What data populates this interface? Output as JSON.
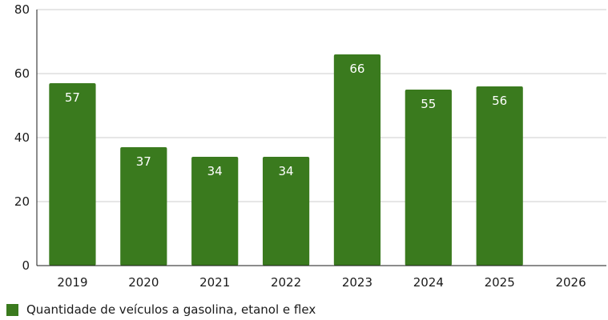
{
  "chart_data": {
    "type": "bar",
    "categories": [
      "2019",
      "2020",
      "2021",
      "2022",
      "2023",
      "2024",
      "2025",
      "2026"
    ],
    "series": [
      {
        "name": "Quantidade de veículos a gasolina, etanol e flex",
        "values": [
          57,
          37,
          34,
          34,
          66,
          55,
          56,
          null
        ]
      }
    ],
    "ylim": [
      0,
      80
    ],
    "yticks": [
      0,
      20,
      40,
      60,
      80
    ],
    "grid": true,
    "legend_position": "bottom-left",
    "data_labels": true,
    "bar_color": "#3a7a1e"
  }
}
